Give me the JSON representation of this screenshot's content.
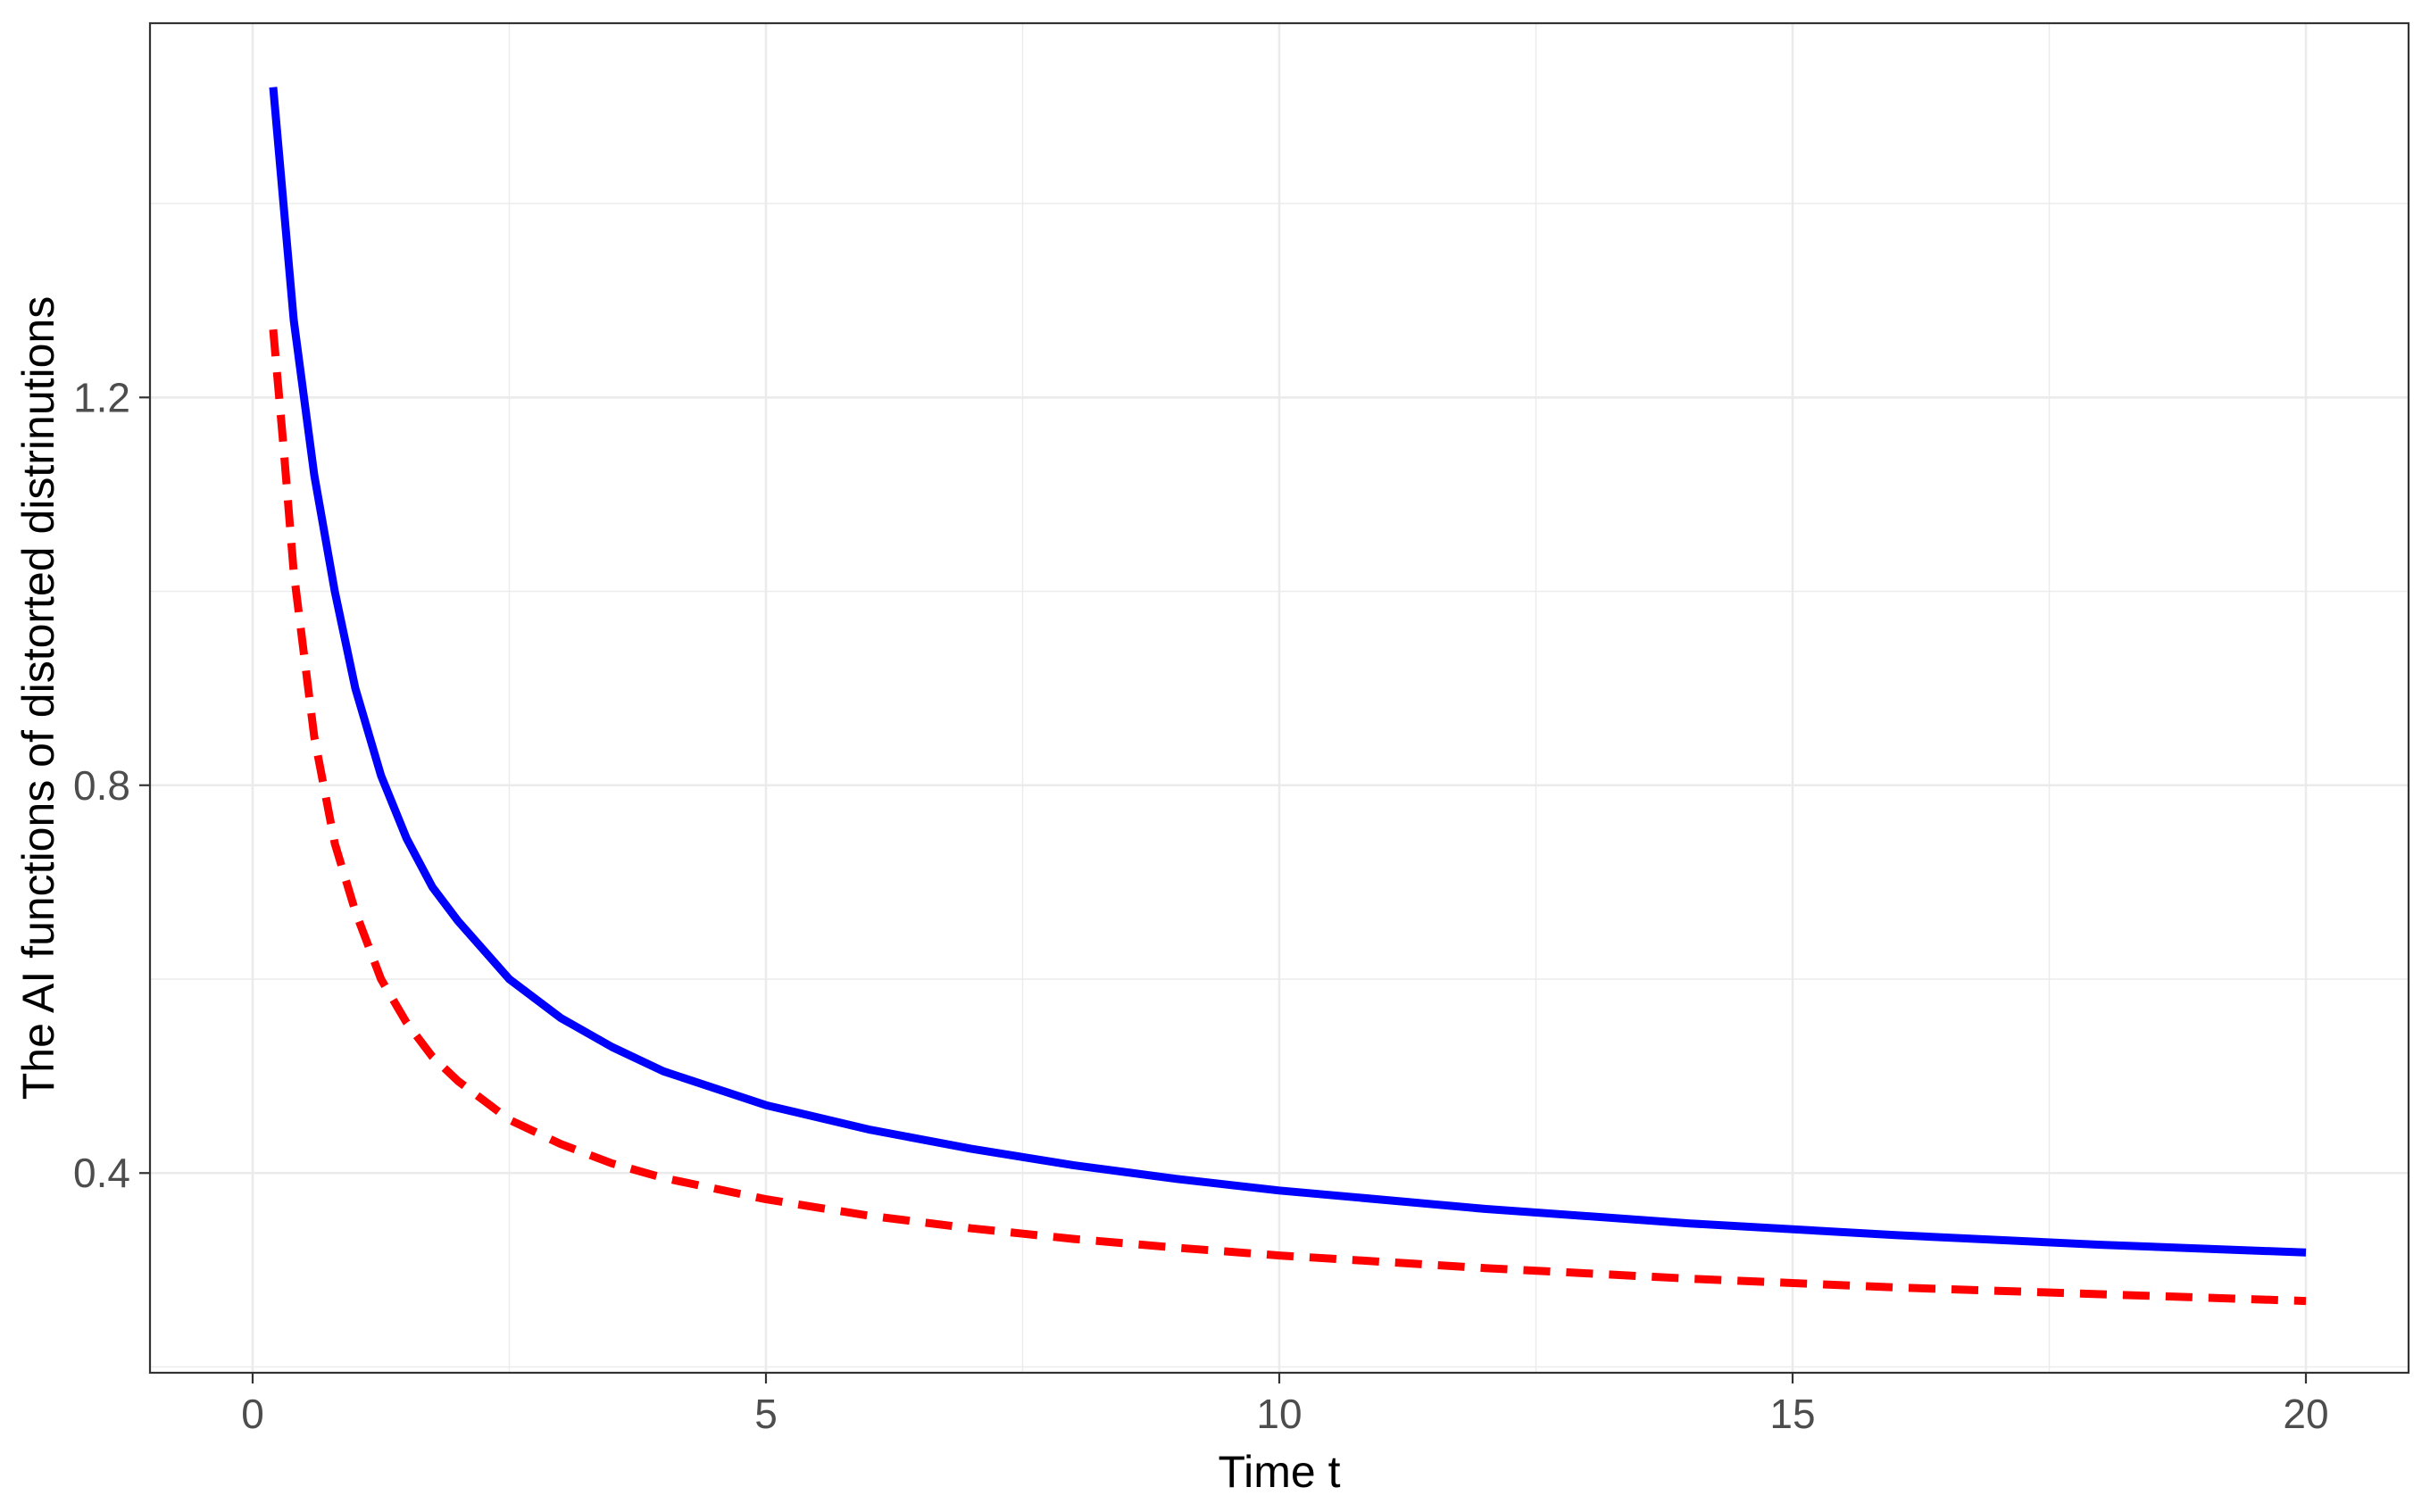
{
  "chart_data": {
    "type": "line",
    "title": "",
    "xlabel": "Time t",
    "ylabel": "The AI functions of distorted distrinutions",
    "xlim": [
      -1,
      21
    ],
    "ylim": [
      0.194,
      1.586
    ],
    "x_ticks": [
      0,
      5,
      10,
      15,
      20
    ],
    "y_ticks": [
      0.4,
      0.8,
      1.2
    ],
    "y_tick_labels": [
      "0.4",
      "0.8",
      "1.2"
    ],
    "grid": true,
    "legend": "none",
    "series": [
      {
        "line_style": "solid",
        "color": "#0000ff",
        "x": [
          0.2,
          0.3,
          0.4,
          0.6,
          0.8,
          1.0,
          1.25,
          1.5,
          1.75,
          2.0,
          2.5,
          3.0,
          3.5,
          4.0,
          5.0,
          6.0,
          7.0,
          8.0,
          9.0,
          10.0,
          12.0,
          14.0,
          16.0,
          18.0,
          20.0
        ],
        "values": [
          1.52,
          1.4,
          1.28,
          1.12,
          1.0,
          0.9,
          0.81,
          0.745,
          0.695,
          0.66,
          0.6,
          0.56,
          0.53,
          0.505,
          0.47,
          0.445,
          0.425,
          0.408,
          0.394,
          0.382,
          0.363,
          0.348,
          0.336,
          0.326,
          0.318
        ]
      },
      {
        "line_style": "dashed",
        "color": "#ff0000",
        "x": [
          0.2,
          0.3,
          0.4,
          0.6,
          0.8,
          1.0,
          1.25,
          1.5,
          1.75,
          2.0,
          2.5,
          3.0,
          3.5,
          4.0,
          5.0,
          6.0,
          7.0,
          8.0,
          9.0,
          10.0,
          12.0,
          14.0,
          16.0,
          18.0,
          20.0
        ],
        "values": [
          1.27,
          1.15,
          1.02,
          0.85,
          0.74,
          0.67,
          0.6,
          0.555,
          0.52,
          0.495,
          0.455,
          0.43,
          0.41,
          0.395,
          0.373,
          0.356,
          0.343,
          0.332,
          0.323,
          0.315,
          0.302,
          0.291,
          0.282,
          0.275,
          0.268
        ]
      }
    ]
  }
}
